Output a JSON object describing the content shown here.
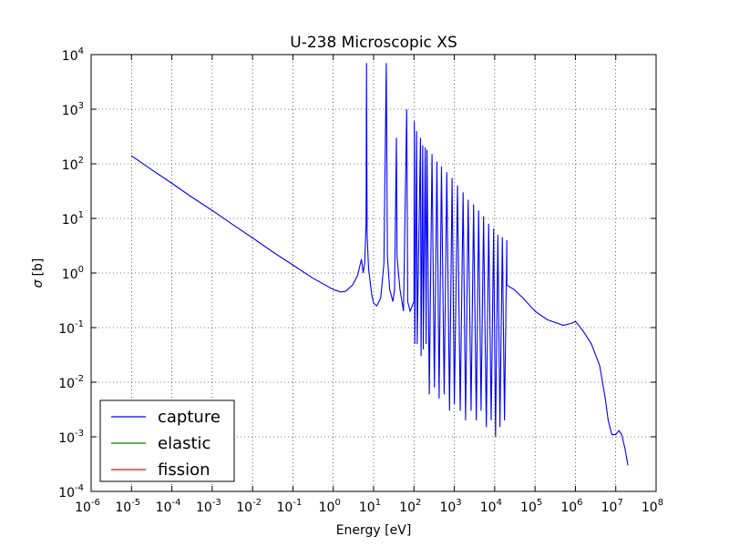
{
  "chart_data": {
    "type": "line",
    "title": "U-238 Microscopic XS",
    "xlabel": "Energy [eV]",
    "ylabel_symbol": "σ",
    "ylabel_unit": "[b]",
    "xscale": "log",
    "yscale": "log",
    "xlim": [
      1e-06,
      100000000.0
    ],
    "ylim": [
      0.0001,
      10000.0
    ],
    "grid": true,
    "legend_position": "lower-left",
    "x_ticks": [
      {
        "base": "10",
        "exp": "-6"
      },
      {
        "base": "10",
        "exp": "-5"
      },
      {
        "base": "10",
        "exp": "-4"
      },
      {
        "base": "10",
        "exp": "-3"
      },
      {
        "base": "10",
        "exp": "-2"
      },
      {
        "base": "10",
        "exp": "-1"
      },
      {
        "base": "10",
        "exp": "0"
      },
      {
        "base": "10",
        "exp": "1"
      },
      {
        "base": "10",
        "exp": "2"
      },
      {
        "base": "10",
        "exp": "3"
      },
      {
        "base": "10",
        "exp": "4"
      },
      {
        "base": "10",
        "exp": "5"
      },
      {
        "base": "10",
        "exp": "6"
      },
      {
        "base": "10",
        "exp": "7"
      },
      {
        "base": "10",
        "exp": "8"
      }
    ],
    "y_ticks": [
      {
        "base": "10",
        "exp": "-4"
      },
      {
        "base": "10",
        "exp": "-3"
      },
      {
        "base": "10",
        "exp": "-2"
      },
      {
        "base": "10",
        "exp": "-1"
      },
      {
        "base": "10",
        "exp": "0"
      },
      {
        "base": "10",
        "exp": "1"
      },
      {
        "base": "10",
        "exp": "2"
      },
      {
        "base": "10",
        "exp": "3"
      },
      {
        "base": "10",
        "exp": "4"
      }
    ],
    "series": [
      {
        "name": "capture",
        "color": "#0000ff",
        "points": [
          [
            1e-05,
            140
          ],
          [
            3e-05,
            80
          ],
          [
            0.0001,
            44
          ],
          [
            0.0003,
            25
          ],
          [
            0.001,
            14
          ],
          [
            0.003,
            8
          ],
          [
            0.01,
            4.4
          ],
          [
            0.03,
            2.5
          ],
          [
            0.1,
            1.4
          ],
          [
            0.3,
            0.82
          ],
          [
            1,
            0.5
          ],
          [
            1.5,
            0.45
          ],
          [
            2,
            0.46
          ],
          [
            3,
            0.6
          ],
          [
            4,
            0.9
          ],
          [
            5,
            1.8
          ],
          [
            5.5,
            1.0
          ],
          [
            6,
            1.5
          ],
          [
            6.5,
            8
          ],
          [
            6.67,
            7000
          ],
          [
            6.9,
            5
          ],
          [
            7.5,
            1.2
          ],
          [
            9,
            0.4
          ],
          [
            10,
            0.28
          ],
          [
            12,
            0.25
          ],
          [
            15,
            0.35
          ],
          [
            18,
            1.5
          ],
          [
            20.6,
            7000
          ],
          [
            22,
            2
          ],
          [
            25,
            0.5
          ],
          [
            30,
            0.3
          ],
          [
            33,
            0.5
          ],
          [
            36.7,
            300
          ],
          [
            38,
            2
          ],
          [
            45,
            0.5
          ],
          [
            55,
            0.2
          ],
          [
            66,
            1000
          ],
          [
            70,
            0.3
          ],
          [
            80,
            0.2
          ],
          [
            100,
            0.3
          ],
          [
            102,
            600
          ],
          [
            105,
            0.05
          ],
          [
            116,
            400
          ],
          [
            120,
            0.05
          ],
          [
            145,
            300
          ],
          [
            150,
            0.03
          ],
          [
            165,
            220
          ],
          [
            170,
            0.04
          ],
          [
            190,
            200
          ],
          [
            200,
            0.05
          ],
          [
            210,
            180
          ],
          [
            240,
            0.006
          ],
          [
            280,
            150
          ],
          [
            320,
            0.008
          ],
          [
            370,
            110
          ],
          [
            420,
            0.005
          ],
          [
            480,
            90
          ],
          [
            560,
            0.006
          ],
          [
            650,
            70
          ],
          [
            760,
            0.003
          ],
          [
            880,
            55
          ],
          [
            1000,
            0.004
          ],
          [
            1200,
            40
          ],
          [
            1400,
            0.003
          ],
          [
            1650,
            30
          ],
          [
            1900,
            0.002
          ],
          [
            2200,
            22
          ],
          [
            2600,
            0.003
          ],
          [
            3000,
            18
          ],
          [
            3500,
            0.002
          ],
          [
            4000,
            14
          ],
          [
            4600,
            0.003
          ],
          [
            5300,
            11
          ],
          [
            6200,
            0.0015
          ],
          [
            7100,
            8
          ],
          [
            8200,
            0.002
          ],
          [
            9400,
            6.5
          ],
          [
            10500,
            0.001
          ],
          [
            12000,
            5
          ],
          [
            13500,
            0.0015
          ],
          [
            15500,
            4.5
          ],
          [
            17500,
            0.002
          ],
          [
            20000,
            4
          ],
          [
            20000,
            0.6
          ],
          [
            30000.0,
            0.5
          ],
          [
            50000.0,
            0.35
          ],
          [
            100000.0,
            0.2
          ],
          [
            200000.0,
            0.14
          ],
          [
            500000.0,
            0.11
          ],
          [
            800000.0,
            0.12
          ],
          [
            1000000.0,
            0.13
          ],
          [
            1500000.0,
            0.09
          ],
          [
            2500000.0,
            0.05
          ],
          [
            4000000.0,
            0.02
          ],
          [
            5500000.0,
            0.005
          ],
          [
            6500000.0,
            0.002
          ],
          [
            8000000.0,
            0.0011
          ],
          [
            10000000.0,
            0.0011
          ],
          [
            12000000.0,
            0.0013
          ],
          [
            14000000.0,
            0.0011
          ],
          [
            17000000.0,
            0.0006
          ],
          [
            20000000.0,
            0.0003
          ]
        ]
      },
      {
        "name": "elastic",
        "color": "#008000",
        "points": []
      },
      {
        "name": "fission",
        "color": "#ff0000",
        "points": []
      }
    ]
  }
}
